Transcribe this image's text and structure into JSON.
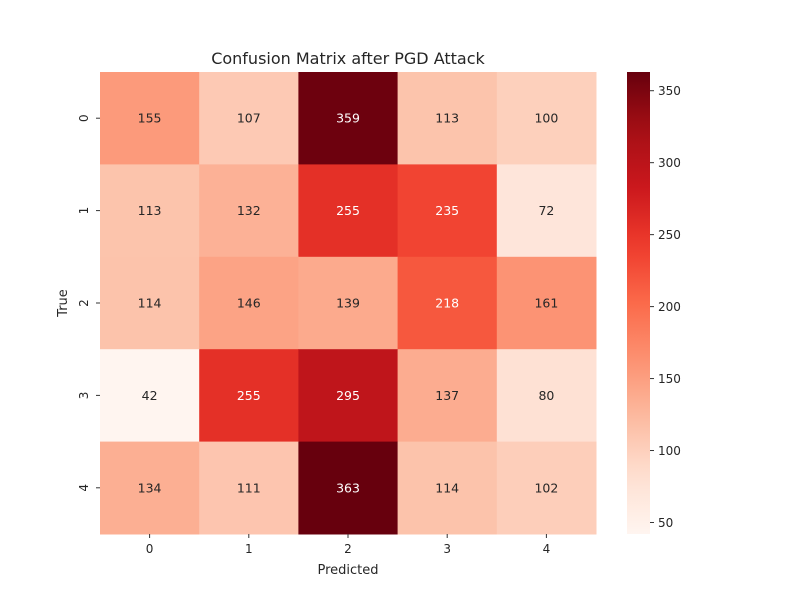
{
  "chart_data": {
    "type": "heatmap",
    "title": "Confusion Matrix after PGD Attack",
    "xlabel": "Predicted",
    "ylabel": "True",
    "x_categories": [
      "0",
      "1",
      "2",
      "3",
      "4"
    ],
    "y_categories": [
      "0",
      "1",
      "2",
      "3",
      "4"
    ],
    "values": [
      [
        155,
        107,
        359,
        113,
        100
      ],
      [
        113,
        132,
        255,
        235,
        72
      ],
      [
        114,
        146,
        139,
        218,
        161
      ],
      [
        42,
        255,
        295,
        137,
        80
      ],
      [
        134,
        111,
        363,
        114,
        102
      ]
    ],
    "colormap": "Reds",
    "color_range": [
      42,
      363
    ],
    "colorbar_ticks": [
      50,
      100,
      150,
      200,
      250,
      300,
      350
    ],
    "colorbar_tick_labels": [
      "50",
      "100",
      "150",
      "200",
      "250",
      "300",
      "350"
    ],
    "annotations": true,
    "grid": false
  }
}
